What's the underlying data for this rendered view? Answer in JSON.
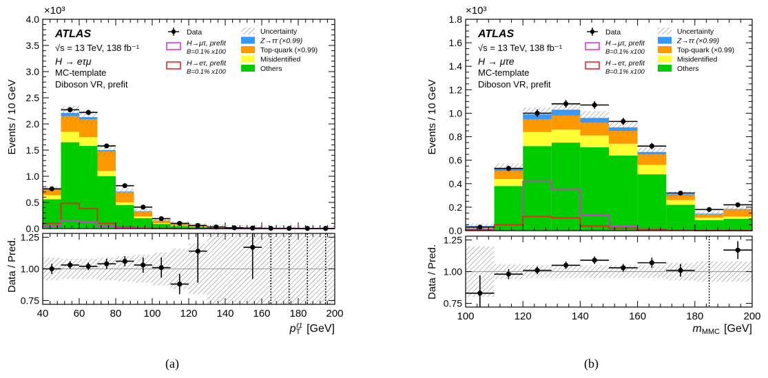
{
  "colors": {
    "z_tautau": "#3399ff",
    "top_quark": "#ff9900",
    "misidentified": "#ffff33",
    "others": "#00cc00",
    "signal_mutau": "#dd33dd",
    "signal_etau": "#ee2222",
    "uncertainty_hatch": "#888888",
    "data": "#000000"
  },
  "panels": [
    {
      "caption": "(a)",
      "atlas_label": "ATLAS",
      "energy_label": "√s = 13 TeV, 138 fb⁻¹",
      "channel_label": "H → eτμ",
      "template_label": "MC-template",
      "region_label": "Diboson VR, prefit",
      "ylabel_main": "Events / 10 GeV",
      "exponent_label": "×10³",
      "ylabel_ratio": "Data / Pred.",
      "xlabel": "pT^ℓ1 [GeV]",
      "xlabel_main": "p",
      "xlabel_sub": "T",
      "xlabel_sup": "ℓ1",
      "xlabel_unit": "[GeV]",
      "legend": {
        "data": "Data",
        "uncertainty": "Uncertainty",
        "signal1": "H→μτ, prefit",
        "signal1_br": "B=0.1% x100",
        "ztautau": "Z→ττ (×0.99)",
        "top": "Top-quark (×0.99)",
        "signal2": "H→eτ, prefit",
        "signal2_br": "B=0.1% x100",
        "misid": "Misidentified",
        "others": "Others"
      }
    },
    {
      "caption": "(b)",
      "atlas_label": "ATLAS",
      "energy_label": "√s = 13 TeV, 138 fb⁻¹",
      "channel_label": "H → μτe",
      "template_label": "MC-template",
      "region_label": "Diboson VR, prefit",
      "ylabel_main": "Events / 10 GeV",
      "exponent_label": "×10³",
      "ylabel_ratio": "Data / Pred.",
      "xlabel": "mMMC [GeV]",
      "xlabel_main": "m",
      "xlabel_sub": "MMC",
      "xlabel_sup": "",
      "xlabel_unit": "[GeV]",
      "legend": {
        "data": "Data",
        "uncertainty": "Uncertainty",
        "signal1": "H→μτ, prefit",
        "signal1_br": "B=0.1% x100",
        "ztautau": "Z→ττ (×0.99)",
        "top": "Top-quark (×0.99)",
        "signal2": "H→eτ, prefit",
        "signal2_br": "B=0.1% x100",
        "misid": "Misidentified",
        "others": "Others"
      }
    }
  ],
  "chart_data": [
    {
      "type": "bar",
      "stacked": true,
      "title": "",
      "xlabel": "pT^ℓ1 [GeV]",
      "ylabel": "Events / 10 GeV",
      "y_scale_label": "×10³",
      "xlim": [
        40,
        200
      ],
      "ylim": [
        0,
        4.0
      ],
      "ylim_ratio": [
        0.72,
        1.28
      ],
      "x_ticks": [
        40,
        60,
        80,
        100,
        120,
        140,
        160,
        180,
        200
      ],
      "y_ticks": [
        0,
        0.5,
        1.0,
        1.5,
        2.0,
        2.5,
        3.0,
        3.5,
        4.0
      ],
      "ratio_ticks": [
        0.75,
        1.0,
        1.25
      ],
      "bin_edges": [
        40,
        50,
        60,
        70,
        80,
        90,
        100,
        110,
        120,
        130,
        140,
        150,
        160,
        170,
        180,
        190,
        200
      ],
      "stack": [
        {
          "key": "others",
          "name": "Others",
          "values": [
            0.56,
            1.65,
            1.58,
            1.0,
            0.45,
            0.2,
            0.09,
            0.05,
            0.03,
            0.015,
            0.008,
            0.005,
            0.004,
            0.003,
            0.002,
            0.002
          ]
        },
        {
          "key": "misidentified",
          "name": "Misidentified",
          "values": [
            0.08,
            0.2,
            0.17,
            0.1,
            0.05,
            0.03,
            0.015,
            0.008,
            0.005,
            0.003,
            0.002,
            0.001,
            0.001,
            0.001,
            0.001,
            0.001
          ]
        },
        {
          "key": "top_quark",
          "name": "Top-quark (×0.99)",
          "values": [
            0.1,
            0.3,
            0.34,
            0.38,
            0.2,
            0.1,
            0.05,
            0.03,
            0.02,
            0.01,
            0.006,
            0.004,
            0.003,
            0.002,
            0.001,
            0.001
          ]
        },
        {
          "key": "z_tautau",
          "name": "Z→ττ (×0.99)",
          "values": [
            0.02,
            0.06,
            0.04,
            0.02,
            0.01,
            0.005,
            0.003,
            0.002,
            0.001,
            0.001,
            0.001,
            0,
            0,
            0,
            0,
            0
          ]
        }
      ],
      "uncertainty_rel": [
        0.06,
        0.06,
        0.06,
        0.07,
        0.08,
        0.09,
        0.12,
        0.15,
        0.2,
        0.25,
        0.3,
        0.35,
        0.4,
        0.45,
        0.5,
        0.55
      ],
      "signals": [
        {
          "key": "signal_etau",
          "name": "H→eτ, prefit",
          "values": [
            0.1,
            0.48,
            0.38,
            0.1,
            0.03,
            0.01,
            0.005,
            0.002,
            0.001,
            0,
            0,
            0,
            0,
            0,
            0,
            0
          ]
        },
        {
          "key": "signal_mutau",
          "name": "H→μτ, prefit",
          "values": [
            0.04,
            0.16,
            0.12,
            0.04,
            0.01,
            0.005,
            0.002,
            0.001,
            0,
            0,
            0,
            0,
            0,
            0,
            0,
            0
          ]
        }
      ],
      "data": {
        "x": [
          45,
          55,
          65,
          75,
          85,
          95,
          105,
          115,
          125,
          135,
          145,
          155,
          165,
          175,
          185,
          195
        ],
        "y": [
          0.76,
          2.27,
          2.22,
          1.58,
          0.82,
          0.41,
          0.19,
          0.1,
          0.06,
          0.03,
          0.015,
          0.01,
          0.005,
          0.004,
          0.003,
          0.003
        ],
        "yerr": [
          0.03,
          0.05,
          0.05,
          0.04,
          0.03,
          0.02,
          0.014,
          0.01,
          0.008,
          0.005,
          0.004,
          0.003,
          0.002,
          0.002,
          0.002,
          0.002
        ]
      },
      "ratio": {
        "x": [
          45,
          55,
          65,
          75,
          85,
          95,
          105,
          115,
          125,
          155
        ],
        "y": [
          1.0,
          1.03,
          1.02,
          1.04,
          1.06,
          1.03,
          1.01,
          0.88,
          1.14,
          1.17
        ],
        "yerr": [
          0.04,
          0.03,
          0.03,
          0.04,
          0.04,
          0.06,
          0.08,
          0.08,
          0.25,
          0.25
        ],
        "band_rel": [
          0.09,
          0.08,
          0.08,
          0.09,
          0.1,
          0.11,
          0.13,
          0.16,
          0.2,
          0.4,
          0.4,
          0.4,
          0.4,
          0.4,
          0.4,
          0.4
        ],
        "arrows": [
          165,
          175,
          185,
          195
        ]
      },
      "legend_position": "top-right"
    },
    {
      "type": "bar",
      "stacked": true,
      "title": "",
      "xlabel": "mMMC [GeV]",
      "ylabel": "Events / 10 GeV",
      "y_scale_label": "×10³",
      "xlim": [
        100,
        200
      ],
      "ylim": [
        0,
        1.8
      ],
      "ylim_ratio": [
        0.72,
        1.28
      ],
      "x_ticks": [
        100,
        120,
        140,
        160,
        180,
        200
      ],
      "y_ticks": [
        0,
        0.2,
        0.4,
        0.6,
        0.8,
        1.0,
        1.2,
        1.4,
        1.6,
        1.8
      ],
      "ratio_ticks": [
        0.75,
        1.0,
        1.25
      ],
      "bin_edges": [
        100,
        110,
        120,
        130,
        140,
        150,
        160,
        170,
        180,
        190,
        200
      ],
      "stack": [
        {
          "key": "others",
          "name": "Others",
          "values": [
            0.02,
            0.38,
            0.72,
            0.75,
            0.71,
            0.64,
            0.48,
            0.22,
            0.09,
            0.1
          ]
        },
        {
          "key": "misidentified",
          "name": "Misidentified",
          "values": [
            0.005,
            0.06,
            0.12,
            0.11,
            0.1,
            0.1,
            0.08,
            0.04,
            0.02,
            0.02
          ]
        },
        {
          "key": "top_quark",
          "name": "Top-quark (×0.99)",
          "values": [
            0.01,
            0.07,
            0.11,
            0.12,
            0.11,
            0.11,
            0.09,
            0.04,
            0.03,
            0.06
          ]
        },
        {
          "key": "z_tautau",
          "name": "Z→ττ (×0.99)",
          "values": [
            0.005,
            0.02,
            0.04,
            0.05,
            0.04,
            0.03,
            0.02,
            0.01,
            0.005,
            0.005
          ]
        }
      ],
      "uncertainty_rel": [
        0.2,
        0.08,
        0.06,
        0.06,
        0.06,
        0.06,
        0.06,
        0.08,
        0.1,
        0.1
      ],
      "signals": [
        {
          "key": "signal_mutau",
          "name": "H→μτ, prefit",
          "values": [
            0.01,
            0.05,
            0.42,
            0.35,
            0.13,
            0.04,
            0.01,
            0.003,
            0.001,
            0.001
          ]
        },
        {
          "key": "signal_etau",
          "name": "H→eτ, prefit",
          "values": [
            0.005,
            0.05,
            0.12,
            0.11,
            0.04,
            0.02,
            0.01,
            0.003,
            0.001,
            0.001
          ]
        }
      ],
      "data": {
        "x": [
          105,
          115,
          125,
          135,
          145,
          155,
          165,
          175,
          185,
          195
        ],
        "y": [
          0.03,
          0.53,
          1.0,
          1.08,
          1.07,
          0.93,
          0.72,
          0.32,
          0.18,
          0.22
        ],
        "yerr": [
          0.006,
          0.023,
          0.032,
          0.033,
          0.033,
          0.03,
          0.027,
          0.018,
          0.013,
          0.015
        ]
      },
      "ratio": {
        "x": [
          105,
          115,
          125,
          135,
          145,
          155,
          165,
          175,
          195
        ],
        "y": [
          0.83,
          0.98,
          1.01,
          1.05,
          1.09,
          1.03,
          1.07,
          1.01,
          1.17
        ],
        "yerr": [
          0.14,
          0.04,
          0.03,
          0.03,
          0.03,
          0.03,
          0.04,
          0.05,
          0.07
        ],
        "band_rel": [
          0.2,
          0.06,
          0.05,
          0.05,
          0.05,
          0.05,
          0.05,
          0.07,
          0.08,
          0.08
        ],
        "arrows": [
          185
        ]
      },
      "legend_position": "top-right"
    }
  ]
}
